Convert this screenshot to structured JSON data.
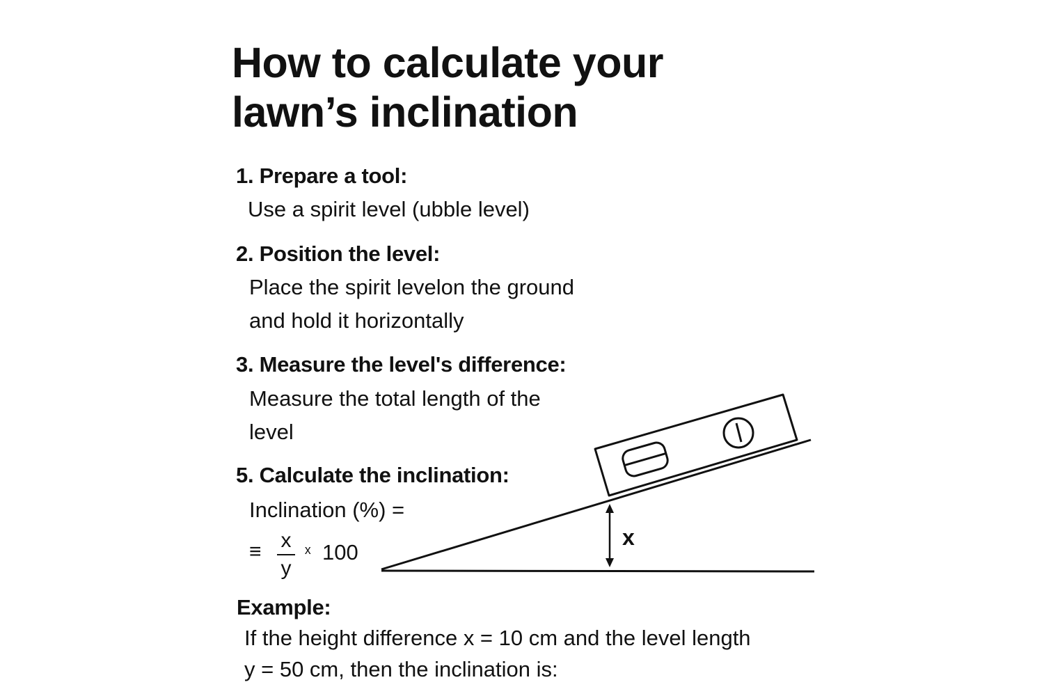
{
  "title": {
    "line1": "How to calculate your",
    "line2": "lawn’s inclination"
  },
  "steps": [
    {
      "heading": "1. Prepare a tool:",
      "body": [
        "Use a spirit level (ubble level)"
      ]
    },
    {
      "heading": "2. Position the level:",
      "body": [
        "Place the spirit levelon the ground",
        "and hold it horizontally"
      ]
    },
    {
      "heading": "3. Measure the level's difference:",
      "body": [
        "Measure the total length of the",
        "level"
      ]
    },
    {
      "heading": "5. Calculate the inclination:",
      "body": [
        "Inclination (%) ="
      ]
    }
  ],
  "formula": {
    "prefix": "≡",
    "numerator": "x",
    "denominator": "y",
    "times": "ˣ",
    "factor": "100"
  },
  "diagram": {
    "height_label": "x",
    "icons": [
      "spirit-level-icon",
      "bubble-vial-icon",
      "round-vial-icon",
      "double-arrow-icon"
    ]
  },
  "example": {
    "heading": "Example:",
    "body": [
      "If the height difference x = 10 cm and the level length",
      "y = 50 cm, then the inclination is:"
    ]
  }
}
